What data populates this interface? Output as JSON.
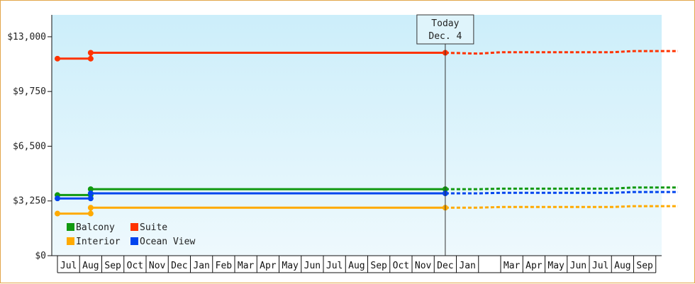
{
  "chart_data": {
    "type": "line",
    "title": "",
    "xlabel": "",
    "ylabel": "",
    "ylim": [
      0,
      14300
    ],
    "y_ticks": [
      0,
      3250,
      6500,
      9750,
      13000
    ],
    "y_tick_labels": [
      "$0",
      "$3,250",
      "$6,500",
      "$9,750",
      "$13,000"
    ],
    "x_ticks": [
      "Jul",
      "Aug",
      "Sep",
      "Oct",
      "Nov",
      "Dec",
      "Jan",
      "Feb",
      "Mar",
      "Apr",
      "May",
      "Jun",
      "Jul",
      "Aug",
      "Sep",
      "Oct",
      "Nov",
      "Dec",
      "Jan",
      "",
      "Mar",
      "Apr",
      "May",
      "Jun",
      "Jul",
      "Aug",
      "Sep"
    ],
    "today": {
      "line1": "Today",
      "line2": "Dec. 4",
      "x": 17.5
    },
    "grid": false,
    "legend_position": "bottom-left",
    "series": [
      {
        "name": "Suite",
        "color": "#ff3300",
        "history": [
          [
            0,
            11700
          ],
          [
            1.5,
            11700
          ],
          [
            1.5,
            12050
          ],
          [
            17.5,
            12050
          ]
        ],
        "markers": [
          [
            0,
            11700
          ],
          [
            1.5,
            11700
          ],
          [
            1.5,
            12050
          ],
          [
            17.5,
            12050
          ]
        ],
        "forecast": [
          [
            17.5,
            12050
          ],
          [
            19,
            12000
          ],
          [
            20,
            12080
          ],
          [
            25,
            12080
          ],
          [
            26,
            12150
          ],
          [
            28,
            12150
          ]
        ]
      },
      {
        "name": "Balcony",
        "color": "#119911",
        "history": [
          [
            0,
            3600
          ],
          [
            1.5,
            3600
          ],
          [
            1.5,
            3950
          ],
          [
            17.5,
            3950
          ]
        ],
        "markers": [
          [
            0,
            3600
          ],
          [
            1.5,
            3600
          ],
          [
            1.5,
            3950
          ],
          [
            17.5,
            3950
          ]
        ],
        "forecast": [
          [
            17.5,
            3950
          ],
          [
            19,
            3950
          ],
          [
            20,
            3980
          ],
          [
            25,
            3980
          ],
          [
            26,
            4050
          ],
          [
            28,
            4050
          ]
        ]
      },
      {
        "name": "Ocean View",
        "color": "#0044ee",
        "history": [
          [
            0,
            3400
          ],
          [
            1.5,
            3400
          ],
          [
            1.5,
            3700
          ],
          [
            17.5,
            3700
          ]
        ],
        "markers": [
          [
            0,
            3400
          ],
          [
            1.5,
            3400
          ],
          [
            1.5,
            3700
          ],
          [
            17.5,
            3700
          ]
        ],
        "forecast": [
          [
            17.5,
            3700
          ],
          [
            19,
            3700
          ],
          [
            20,
            3730
          ],
          [
            25,
            3730
          ],
          [
            26,
            3780
          ],
          [
            28,
            3780
          ]
        ]
      },
      {
        "name": "Interior",
        "color": "#ffaa00",
        "history": [
          [
            0,
            2500
          ],
          [
            1.5,
            2500
          ],
          [
            1.5,
            2850
          ],
          [
            17.5,
            2850
          ]
        ],
        "markers": [
          [
            0,
            2500
          ],
          [
            1.5,
            2500
          ],
          [
            1.5,
            2850
          ],
          [
            17.5,
            2850
          ]
        ],
        "forecast": [
          [
            17.5,
            2850
          ],
          [
            19,
            2850
          ],
          [
            20,
            2890
          ],
          [
            25,
            2890
          ],
          [
            26,
            2940
          ],
          [
            28,
            2940
          ]
        ]
      }
    ],
    "legend_rows": [
      [
        "Balcony",
        "Suite"
      ],
      [
        "Interior",
        "Ocean View"
      ]
    ]
  }
}
